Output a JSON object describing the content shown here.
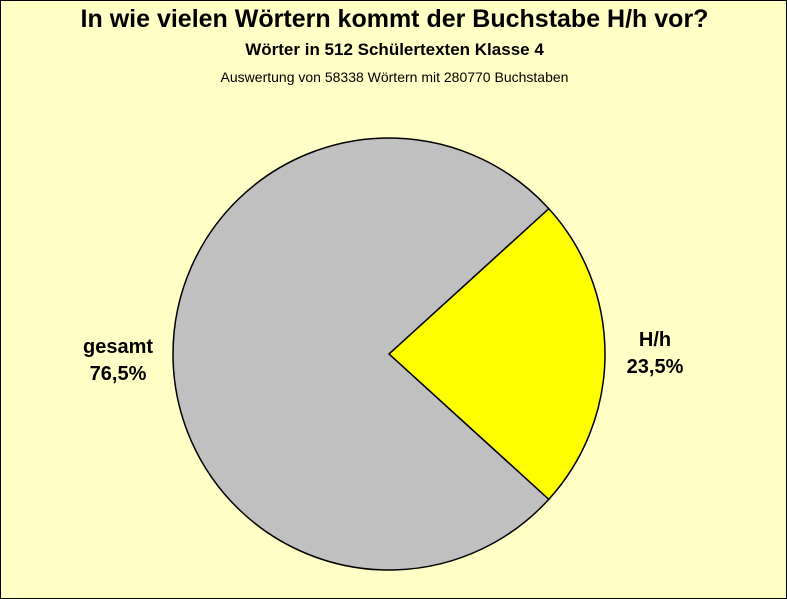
{
  "chart_data": {
    "type": "pie",
    "title": "In wie vielen Wörtern kommt der Buchstabe H/h vor?",
    "subtitle": "Wörter in 512 Schülertexten Klasse 4",
    "note": "Auswertung von 58338 Wörtern mit 280770 Buchstaben",
    "slices": [
      {
        "name": "H/h",
        "value": 23.5,
        "label": "23,5%",
        "color": "#ffff00"
      },
      {
        "name": "gesamt",
        "value": 76.5,
        "label": "76,5%",
        "color": "#c0c0c0"
      }
    ]
  }
}
